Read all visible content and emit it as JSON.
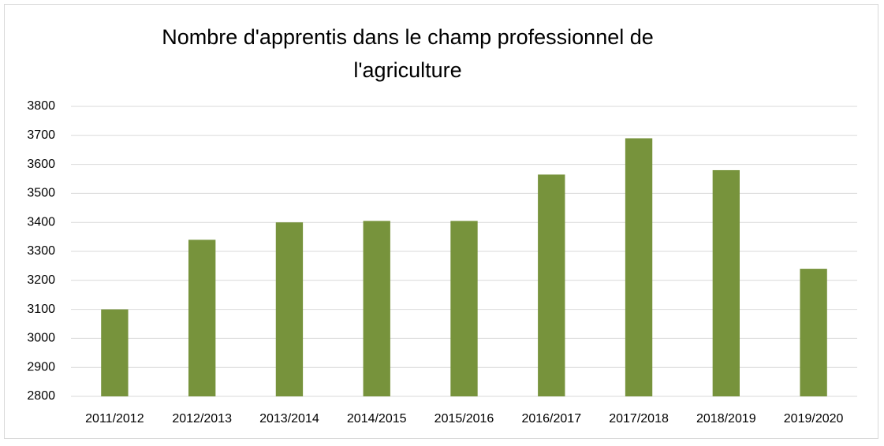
{
  "chart_data": {
    "type": "bar",
    "title": "Nombre d'apprentis dans le champ professionnel de l'agriculture",
    "categories": [
      "2011/2012",
      "2012/2013",
      "2013/2014",
      "2014/2015",
      "2015/2016",
      "2016/2017",
      "2017/2018",
      "2018/2019",
      "2019/2020"
    ],
    "values": [
      3100,
      3340,
      3400,
      3405,
      3405,
      3565,
      3690,
      3580,
      3240
    ],
    "color": "#77933c",
    "ylim": [
      2800,
      3800
    ],
    "yticks": [
      2800,
      2900,
      3000,
      3100,
      3200,
      3300,
      3400,
      3500,
      3600,
      3700,
      3800
    ],
    "grid": true
  }
}
